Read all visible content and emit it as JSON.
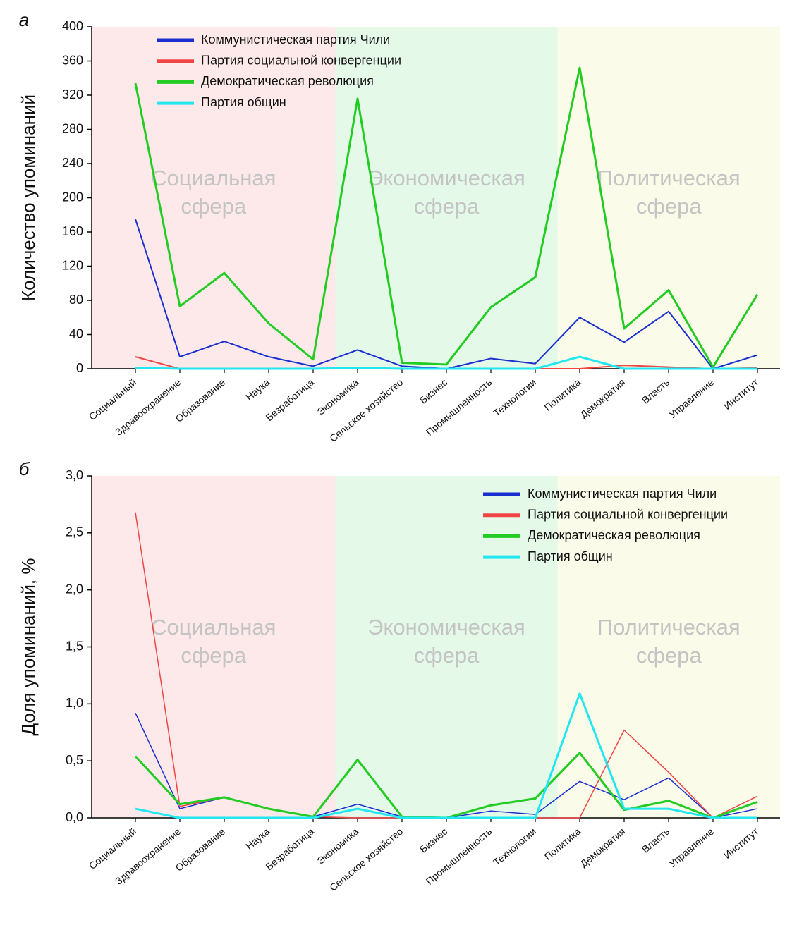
{
  "chart_data": [
    {
      "type": "line",
      "panel_label": "а",
      "y_label": "Количество упоминаний",
      "legend": "upper left",
      "categories": [
        "Социальный",
        "Здравоохранение",
        "Образование",
        "Наука",
        "Безработица",
        "Экономика",
        "Сельское хозяйство",
        "Бизнес",
        "Промышленность",
        "Технологии",
        "Политика",
        "Демократия",
        "Власть",
        "Управление",
        "Институт"
      ],
      "regions": [
        {
          "label": [
            "Социальная",
            "сфера"
          ],
          "color": "#fde9e9"
        },
        {
          "label": [
            "Экономическая",
            "сфера"
          ],
          "color": "#e4f9e8"
        },
        {
          "label": [
            "Политическая",
            "сфера"
          ],
          "color": "#fbfbe9"
        }
      ],
      "series": [
        {
          "name": "Коммунистическая партия Чили",
          "color": "#1a2fcf",
          "values": [
            175,
            14,
            32,
            14,
            3,
            22,
            3,
            0,
            12,
            6,
            60,
            31,
            67,
            0,
            16
          ]
        },
        {
          "name": "Партия социальной конвергенции",
          "color": "#f04545",
          "values": [
            14,
            0,
            0,
            0,
            0,
            0,
            0,
            0,
            0,
            0,
            0,
            4,
            2,
            0,
            1
          ]
        },
        {
          "name": "Демократическая революция",
          "color": "#22cc22",
          "values": [
            334,
            73,
            112,
            53,
            11,
            316,
            7,
            5,
            72,
            107,
            352,
            47,
            92,
            2,
            87
          ]
        },
        {
          "name": "Партия общин",
          "color": "#22e6f0",
          "values": [
            1,
            0,
            0,
            0,
            0,
            1,
            0,
            0,
            0,
            0,
            14,
            0,
            0,
            0,
            0
          ]
        }
      ],
      "ylim": [
        0,
        400
      ],
      "yticks": [
        0,
        40,
        80,
        120,
        160,
        200,
        240,
        280,
        320,
        360,
        400
      ]
    },
    {
      "type": "line",
      "panel_label": "б",
      "y_label": "Доля упоминаний, %",
      "legend": "upper right",
      "categories": [
        "Социальный",
        "Здравоохранение",
        "Образование",
        "Наука",
        "Безработица",
        "Экономика",
        "Сельское хозяйство",
        "Бизнес",
        "Промышленность",
        "Технологии",
        "Политика",
        "Демократия",
        "Власть",
        "Управление",
        "Институт"
      ],
      "regions": [
        {
          "label": [
            "Социальная",
            "сфера"
          ],
          "color": "#fde9e9"
        },
        {
          "label": [
            "Экономическая",
            "сфера"
          ],
          "color": "#e4f9e8"
        },
        {
          "label": [
            "Политическая",
            "сфера"
          ],
          "color": "#fbfbe9"
        }
      ],
      "series": [
        {
          "name": "Коммунистическая партия Чили",
          "color": "#1a2fcf",
          "values": [
            0.92,
            0.08,
            0.18,
            0.08,
            0.01,
            0.12,
            0.01,
            0,
            0.06,
            0.03,
            0.32,
            0.16,
            0.35,
            0,
            0.08
          ]
        },
        {
          "name": "Партия социальной конвергенции",
          "color": "#f04545",
          "values": [
            2.68,
            0.1,
            0.18,
            0.08,
            0.01,
            0,
            0,
            0,
            0,
            0,
            0,
            0.77,
            0.4,
            0,
            0.19
          ]
        },
        {
          "name": "Демократическая революция",
          "color": "#22cc22",
          "values": [
            0.54,
            0.12,
            0.18,
            0.08,
            0.01,
            0.51,
            0.01,
            0,
            0.11,
            0.17,
            0.57,
            0.07,
            0.15,
            0,
            0.14
          ]
        },
        {
          "name": "Партия общин",
          "color": "#22e6f0",
          "values": [
            0.08,
            0,
            0,
            0,
            0,
            0.08,
            0,
            0,
            0,
            0,
            1.09,
            0.08,
            0.08,
            0,
            0
          ]
        }
      ],
      "ylim": [
        0,
        3.0
      ],
      "yticks": [
        {
          "value": 0,
          "label": "0,0"
        },
        {
          "value": 0.5,
          "label": "0,5"
        },
        {
          "value": 1.0,
          "label": "1,0"
        },
        {
          "value": 1.5,
          "label": "1,5"
        },
        {
          "value": 2.0,
          "label": "2,0"
        },
        {
          "value": 2.5,
          "label": "2,5"
        },
        {
          "value": 3.0,
          "label": "3,0"
        }
      ]
    }
  ]
}
